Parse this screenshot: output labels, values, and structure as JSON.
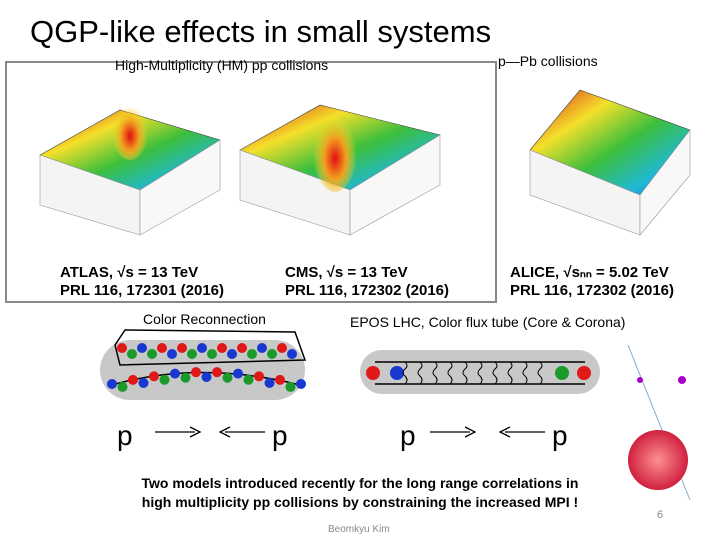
{
  "header": {
    "title": "QGP-like effects in small systems"
  },
  "figures": {
    "pp_heading": "High-Multiplicity (HM) pp collisions",
    "ppb_heading": "p—Pb collisions",
    "captions": [
      {
        "experiment": "ATLAS, √s = 13 TeV",
        "reference": "PRL 116, 172301 (2016)"
      },
      {
        "experiment": "CMS, √s = 13 TeV",
        "reference": "PRL 116, 172302 (2016)"
      },
      {
        "experiment": "ALICE, √sₙₙ = 5.02 TeV",
        "reference": "PRL 116, 172302 (2016)"
      }
    ]
  },
  "models": [
    {
      "label": "Color Reconnection",
      "projectiles": [
        "p",
        "p"
      ]
    },
    {
      "label": "EPOS LHC, Color flux tube (Core & Corona)",
      "projectiles": [
        "p",
        "p"
      ]
    }
  ],
  "summary_lines": [
    "Two models introduced recently for the long range correlations in",
    "high multiplicity pp collisions by constraining the increased MPI !"
  ],
  "footer": {
    "author": "Beomkyu Kim",
    "page": "6"
  }
}
